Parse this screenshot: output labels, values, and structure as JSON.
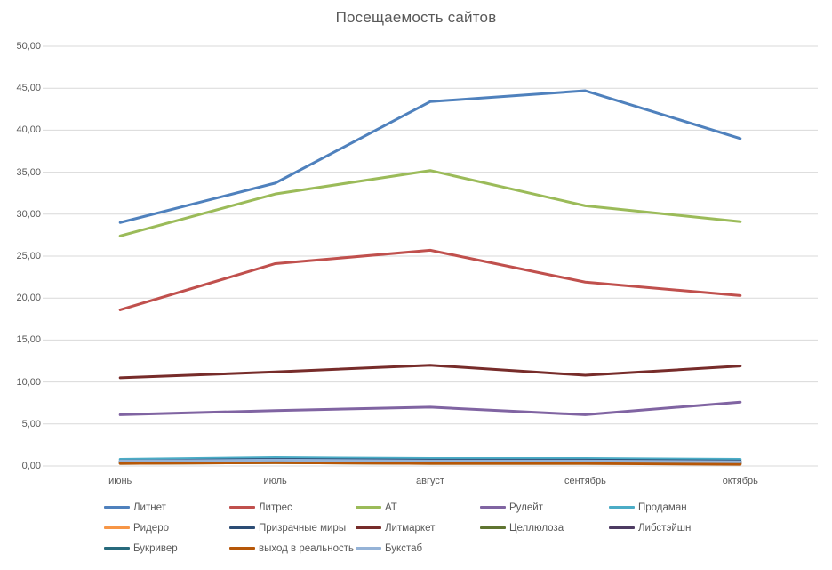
{
  "chart_data": {
    "type": "line",
    "title": "Посещаемость сайтов",
    "categories": [
      "июнь",
      "июль",
      "август",
      "сентябрь",
      "октябрь"
    ],
    "y_tick_labels": [
      "0,00",
      "5,00",
      "10,00",
      "15,00",
      "20,00",
      "25,00",
      "30,00",
      "35,00",
      "40,00",
      "45,00",
      "50,00"
    ],
    "ylim": [
      0,
      50
    ],
    "grid": true,
    "legend_position": "bottom",
    "text_color": "#595959",
    "gridline_color": "#D9D9D9",
    "series": [
      {
        "name": "Литнет",
        "color": "#4F81BD",
        "values": [
          29.0,
          33.7,
          43.4,
          44.7,
          39.0
        ]
      },
      {
        "name": "Литрес",
        "color": "#C0504D",
        "values": [
          18.6,
          24.1,
          25.7,
          21.9,
          20.3
        ]
      },
      {
        "name": "АТ",
        "color": "#9BBB59",
        "values": [
          27.4,
          32.4,
          35.2,
          31.0,
          29.1
        ]
      },
      {
        "name": "Рулейт",
        "color": "#8064A2",
        "values": [
          6.1,
          6.6,
          7.0,
          6.1,
          7.6
        ]
      },
      {
        "name": "Продаман",
        "color": "#4BACC6",
        "values": [
          0.8,
          1.0,
          0.9,
          0.9,
          0.8
        ]
      },
      {
        "name": "Ридеро",
        "color": "#F79646",
        "values": [
          0.5,
          0.7,
          0.6,
          0.5,
          0.4
        ]
      },
      {
        "name": "Призрачные миры",
        "color": "#2C4D75",
        "values": [
          0.6,
          0.8,
          0.7,
          0.7,
          0.6
        ]
      },
      {
        "name": "Литмаркет",
        "color": "#772C2A",
        "values": [
          10.5,
          11.2,
          12.0,
          10.8,
          11.9
        ]
      },
      {
        "name": "Целлюлоза",
        "color": "#5F7530",
        "values": [
          0.3,
          0.4,
          0.3,
          0.3,
          0.3
        ]
      },
      {
        "name": "Либстэйшн",
        "color": "#4D3B62",
        "values": [
          0.4,
          0.5,
          0.4,
          0.4,
          0.3
        ]
      },
      {
        "name": "Букривер",
        "color": "#276A7C",
        "values": [
          0.5,
          0.6,
          0.5,
          0.5,
          0.5
        ]
      },
      {
        "name": "выход в реальность",
        "color": "#B65708",
        "values": [
          0.3,
          0.4,
          0.3,
          0.3,
          0.2
        ]
      },
      {
        "name": "Букстаб",
        "color": "#95B3D7",
        "values": [
          0.6,
          0.7,
          0.6,
          0.6,
          0.5
        ]
      }
    ]
  }
}
